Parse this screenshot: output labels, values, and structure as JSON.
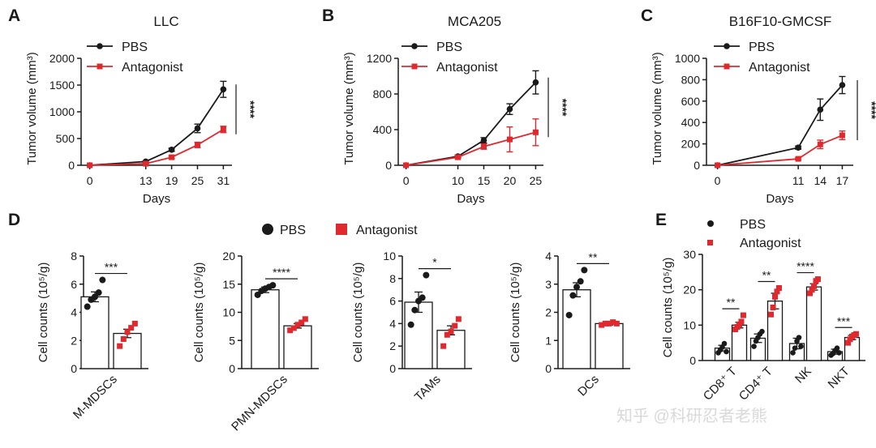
{
  "panels": {
    "A": "A",
    "B": "B",
    "C": "C",
    "D": "D",
    "E": "E"
  },
  "watermark": "知乎 @科研忍者老熊",
  "colors": {
    "pbs": "#1a1a1a",
    "antagonist": "#e0292f"
  },
  "chart_data": [
    {
      "id": "A",
      "type": "line",
      "title": "LLC",
      "xlabel": "Days",
      "ylabel": "Tumor volume (mm³)",
      "x": [
        0,
        13,
        19,
        25,
        31
      ],
      "ylim": [
        0,
        2000
      ],
      "yticks": [
        0,
        500,
        1000,
        1500,
        2000
      ],
      "series": [
        {
          "name": "PBS",
          "values": [
            0,
            70,
            290,
            690,
            1420
          ],
          "errors": [
            0,
            15,
            30,
            80,
            150
          ]
        },
        {
          "name": "Antagonist",
          "values": [
            0,
            30,
            150,
            380,
            670
          ],
          "errors": [
            0,
            10,
            25,
            50,
            60
          ]
        }
      ],
      "significance": "****",
      "legend": "top-left"
    },
    {
      "id": "B",
      "type": "line",
      "title": "MCA205",
      "xlabel": "Days",
      "ylabel": "Tumor volume (mm³)",
      "x": [
        0,
        10,
        15,
        20,
        25
      ],
      "ylim": [
        0,
        1200
      ],
      "yticks": [
        0,
        400,
        800,
        1200
      ],
      "series": [
        {
          "name": "PBS",
          "values": [
            0,
            100,
            280,
            630,
            930
          ],
          "errors": [
            0,
            15,
            30,
            60,
            130
          ]
        },
        {
          "name": "Antagonist",
          "values": [
            0,
            90,
            210,
            290,
            370
          ],
          "errors": [
            0,
            15,
            30,
            140,
            150
          ]
        }
      ],
      "significance": "****",
      "legend": "top-left"
    },
    {
      "id": "C",
      "type": "line",
      "title": "B16F10-GMCSF",
      "xlabel": "Days",
      "ylabel": "Tumor volume (mm³)",
      "x": [
        0,
        11,
        14,
        17
      ],
      "ylim": [
        0,
        1000
      ],
      "yticks": [
        0,
        200,
        400,
        600,
        800,
        1000
      ],
      "series": [
        {
          "name": "PBS",
          "values": [
            0,
            165,
            520,
            750
          ],
          "errors": [
            0,
            15,
            100,
            80
          ]
        },
        {
          "name": "Antagonist",
          "values": [
            0,
            60,
            195,
            280
          ],
          "errors": [
            0,
            10,
            40,
            40
          ]
        }
      ],
      "significance": "****",
      "legend": "top-left"
    },
    {
      "id": "D1",
      "type": "bar",
      "ylabel": "Cell counts (10⁵/g)",
      "categories": [
        "M-MDSCs"
      ],
      "ylim": [
        0,
        8
      ],
      "yticks": [
        0,
        2,
        4,
        6,
        8
      ],
      "series": [
        {
          "name": "PBS",
          "values": [
            5.1
          ],
          "errors": [
            0.35
          ],
          "points": [
            [
              4.4,
              4.9,
              5.1,
              5.4,
              6.3
            ]
          ]
        },
        {
          "name": "Antagonist",
          "values": [
            2.5
          ],
          "errors": [
            0.3
          ],
          "points": [
            [
              1.6,
              2.1,
              2.6,
              2.9,
              3.2
            ]
          ]
        }
      ],
      "significance": [
        "***"
      ]
    },
    {
      "id": "D2",
      "type": "bar",
      "ylabel": "Cell counts (10⁵/g)",
      "categories": [
        "PMN-MDSCs"
      ],
      "ylim": [
        0,
        20
      ],
      "yticks": [
        0,
        5,
        10,
        15,
        20
      ],
      "series": [
        {
          "name": "PBS",
          "values": [
            14.0
          ],
          "errors": [
            0.5
          ],
          "points": [
            [
              13.1,
              13.8,
              14.2,
              14.5,
              14.8
            ]
          ]
        },
        {
          "name": "Antagonist",
          "values": [
            7.6
          ],
          "errors": [
            0.4
          ],
          "points": [
            [
              6.8,
              7.2,
              7.8,
              8.2,
              8.8
            ]
          ]
        }
      ],
      "significance": [
        "****"
      ]
    },
    {
      "id": "D3",
      "type": "bar",
      "ylabel": "Cell counts (10⁵/g)",
      "categories": [
        "TAMs"
      ],
      "ylim": [
        0,
        10
      ],
      "yticks": [
        0,
        2,
        4,
        6,
        8,
        10
      ],
      "series": [
        {
          "name": "PBS",
          "values": [
            5.9
          ],
          "errors": [
            0.9
          ],
          "points": [
            [
              3.9,
              5.2,
              6.0,
              6.3,
              8.3
            ]
          ]
        },
        {
          "name": "Antagonist",
          "values": [
            3.4
          ],
          "errors": [
            0.4
          ],
          "points": [
            [
              2.0,
              3.0,
              3.3,
              3.8,
              4.4
            ]
          ]
        }
      ],
      "significance": [
        "*"
      ]
    },
    {
      "id": "D4",
      "type": "bar",
      "ylabel": "Cell counts (10⁵/g)",
      "categories": [
        "DCs"
      ],
      "ylim": [
        0,
        4
      ],
      "yticks": [
        0,
        1,
        2,
        3,
        4
      ],
      "series": [
        {
          "name": "PBS",
          "values": [
            2.8
          ],
          "errors": [
            0.25
          ],
          "points": [
            [
              1.9,
              2.6,
              2.9,
              3.1,
              3.5
            ]
          ]
        },
        {
          "name": "Antagonist",
          "values": [
            1.6
          ],
          "errors": [
            0.05
          ],
          "points": [
            [
              1.55,
              1.6,
              1.6,
              1.65,
              1.6
            ]
          ]
        }
      ],
      "significance": [
        "**"
      ]
    },
    {
      "id": "E",
      "type": "bar",
      "ylabel": "Cell counts (10⁵/g)",
      "categories": [
        "CD8⁺ T",
        "CD4⁺ T",
        "NK",
        "NKT"
      ],
      "ylim": [
        0,
        30
      ],
      "yticks": [
        0,
        10,
        20,
        30
      ],
      "series": [
        {
          "name": "PBS",
          "values": [
            3.5,
            6.3,
            4.8,
            2.5
          ],
          "errors": [
            0.8,
            1.2,
            1.5,
            0.7
          ],
          "points": [
            [
              2.2,
              3.0,
              3.8,
              4.8,
              2.5
            ],
            [
              4.0,
              5.5,
              6.5,
              7.5,
              8.2
            ],
            [
              2.2,
              3.5,
              5.5,
              6.5,
              4.0
            ],
            [
              1.5,
              2.0,
              2.8,
              3.5,
              2.2
            ]
          ]
        },
        {
          "name": "Antagonist",
          "values": [
            10.0,
            16.8,
            20.8,
            6.5
          ],
          "errors": [
            0.8,
            2.2,
            0.9,
            0.6
          ],
          "points": [
            [
              8.8,
              9.5,
              10.2,
              11.0,
              12.8
            ],
            [
              13.0,
              15.0,
              18.0,
              19.5,
              20.5
            ],
            [
              19.0,
              20.0,
              21.0,
              22.5,
              23.0
            ],
            [
              5.0,
              6.0,
              6.8,
              7.2,
              7.5
            ]
          ]
        }
      ],
      "significance": [
        "**",
        "**",
        "****",
        "***"
      ]
    }
  ],
  "legend_D": [
    "PBS",
    "Antagonist"
  ],
  "legend_E": [
    "PBS",
    "Antagonist"
  ]
}
